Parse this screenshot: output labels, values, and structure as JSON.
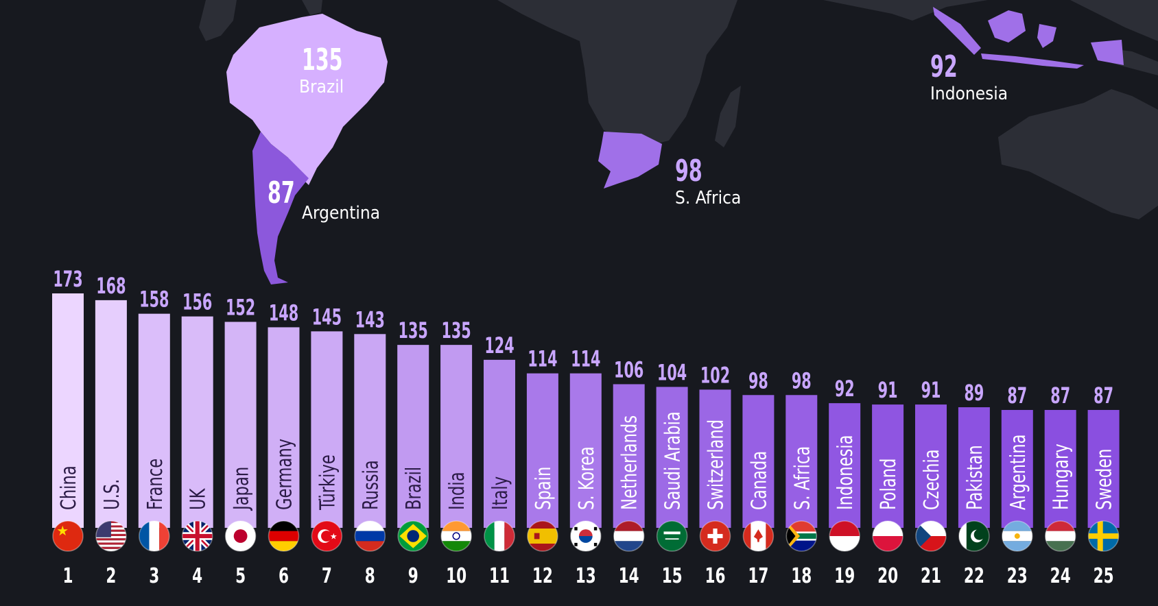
{
  "map_labels": [
    {
      "value": "135",
      "name": "Brazil",
      "value_color": "#ffffff"
    },
    {
      "value": "87",
      "name": "Argentina",
      "value_color": "#ffffff"
    },
    {
      "value": "98",
      "name": "S. Africa",
      "value_color": "#c9a6ff"
    },
    {
      "value": "92",
      "name": "Indonesia",
      "value_color": "#c9a6ff"
    }
  ],
  "colors": {
    "background": "#17191f",
    "land": "#2c2e36",
    "highlight_light": "#d6b0ff",
    "highlight_mid": "#a070e8",
    "highlight_dark": "#8c58dc",
    "bar_high": "#ecd6ff",
    "bar_low": "#8a4fe0"
  },
  "chart_data": {
    "type": "bar",
    "categories": [
      "China",
      "U.S.",
      "France",
      "UK",
      "Japan",
      "Germany",
      "Türkiye",
      "Russia",
      "Brazil",
      "India",
      "Italy",
      "Spain",
      "S. Korea",
      "Netherlands",
      "Saudi Arabia",
      "Switzerland",
      "Canada",
      "S. Africa",
      "Indonesia",
      "Poland",
      "Czechia",
      "Pakistan",
      "Argentina",
      "Hungary",
      "Sweden"
    ],
    "values": [
      173,
      168,
      158,
      156,
      152,
      148,
      145,
      143,
      135,
      135,
      124,
      114,
      114,
      106,
      104,
      102,
      98,
      98,
      92,
      91,
      91,
      89,
      87,
      87,
      87
    ],
    "ranks": [
      "1",
      "2",
      "3",
      "4",
      "5",
      "6",
      "7",
      "8",
      "9",
      "10",
      "11",
      "12",
      "13",
      "14",
      "15",
      "16",
      "17",
      "18",
      "19",
      "20",
      "21",
      "22",
      "23",
      "24",
      "25"
    ],
    "flags": [
      "china-flag",
      "us-flag",
      "france-flag",
      "uk-flag",
      "japan-flag",
      "germany-flag",
      "turkiye-flag",
      "russia-flag",
      "brazil-flag",
      "india-flag",
      "italy-flag",
      "spain-flag",
      "south-korea-flag",
      "netherlands-flag",
      "saudi-arabia-flag",
      "switzerland-flag",
      "canada-flag",
      "south-africa-flag",
      "indonesia-flag",
      "poland-flag",
      "czechia-flag",
      "pakistan-flag",
      "argentina-flag",
      "hungary-flag",
      "sweden-flag"
    ],
    "title": "",
    "xlabel": "",
    "ylabel": "",
    "ylim": [
      0,
      173
    ],
    "grid": false,
    "legend": "none"
  }
}
